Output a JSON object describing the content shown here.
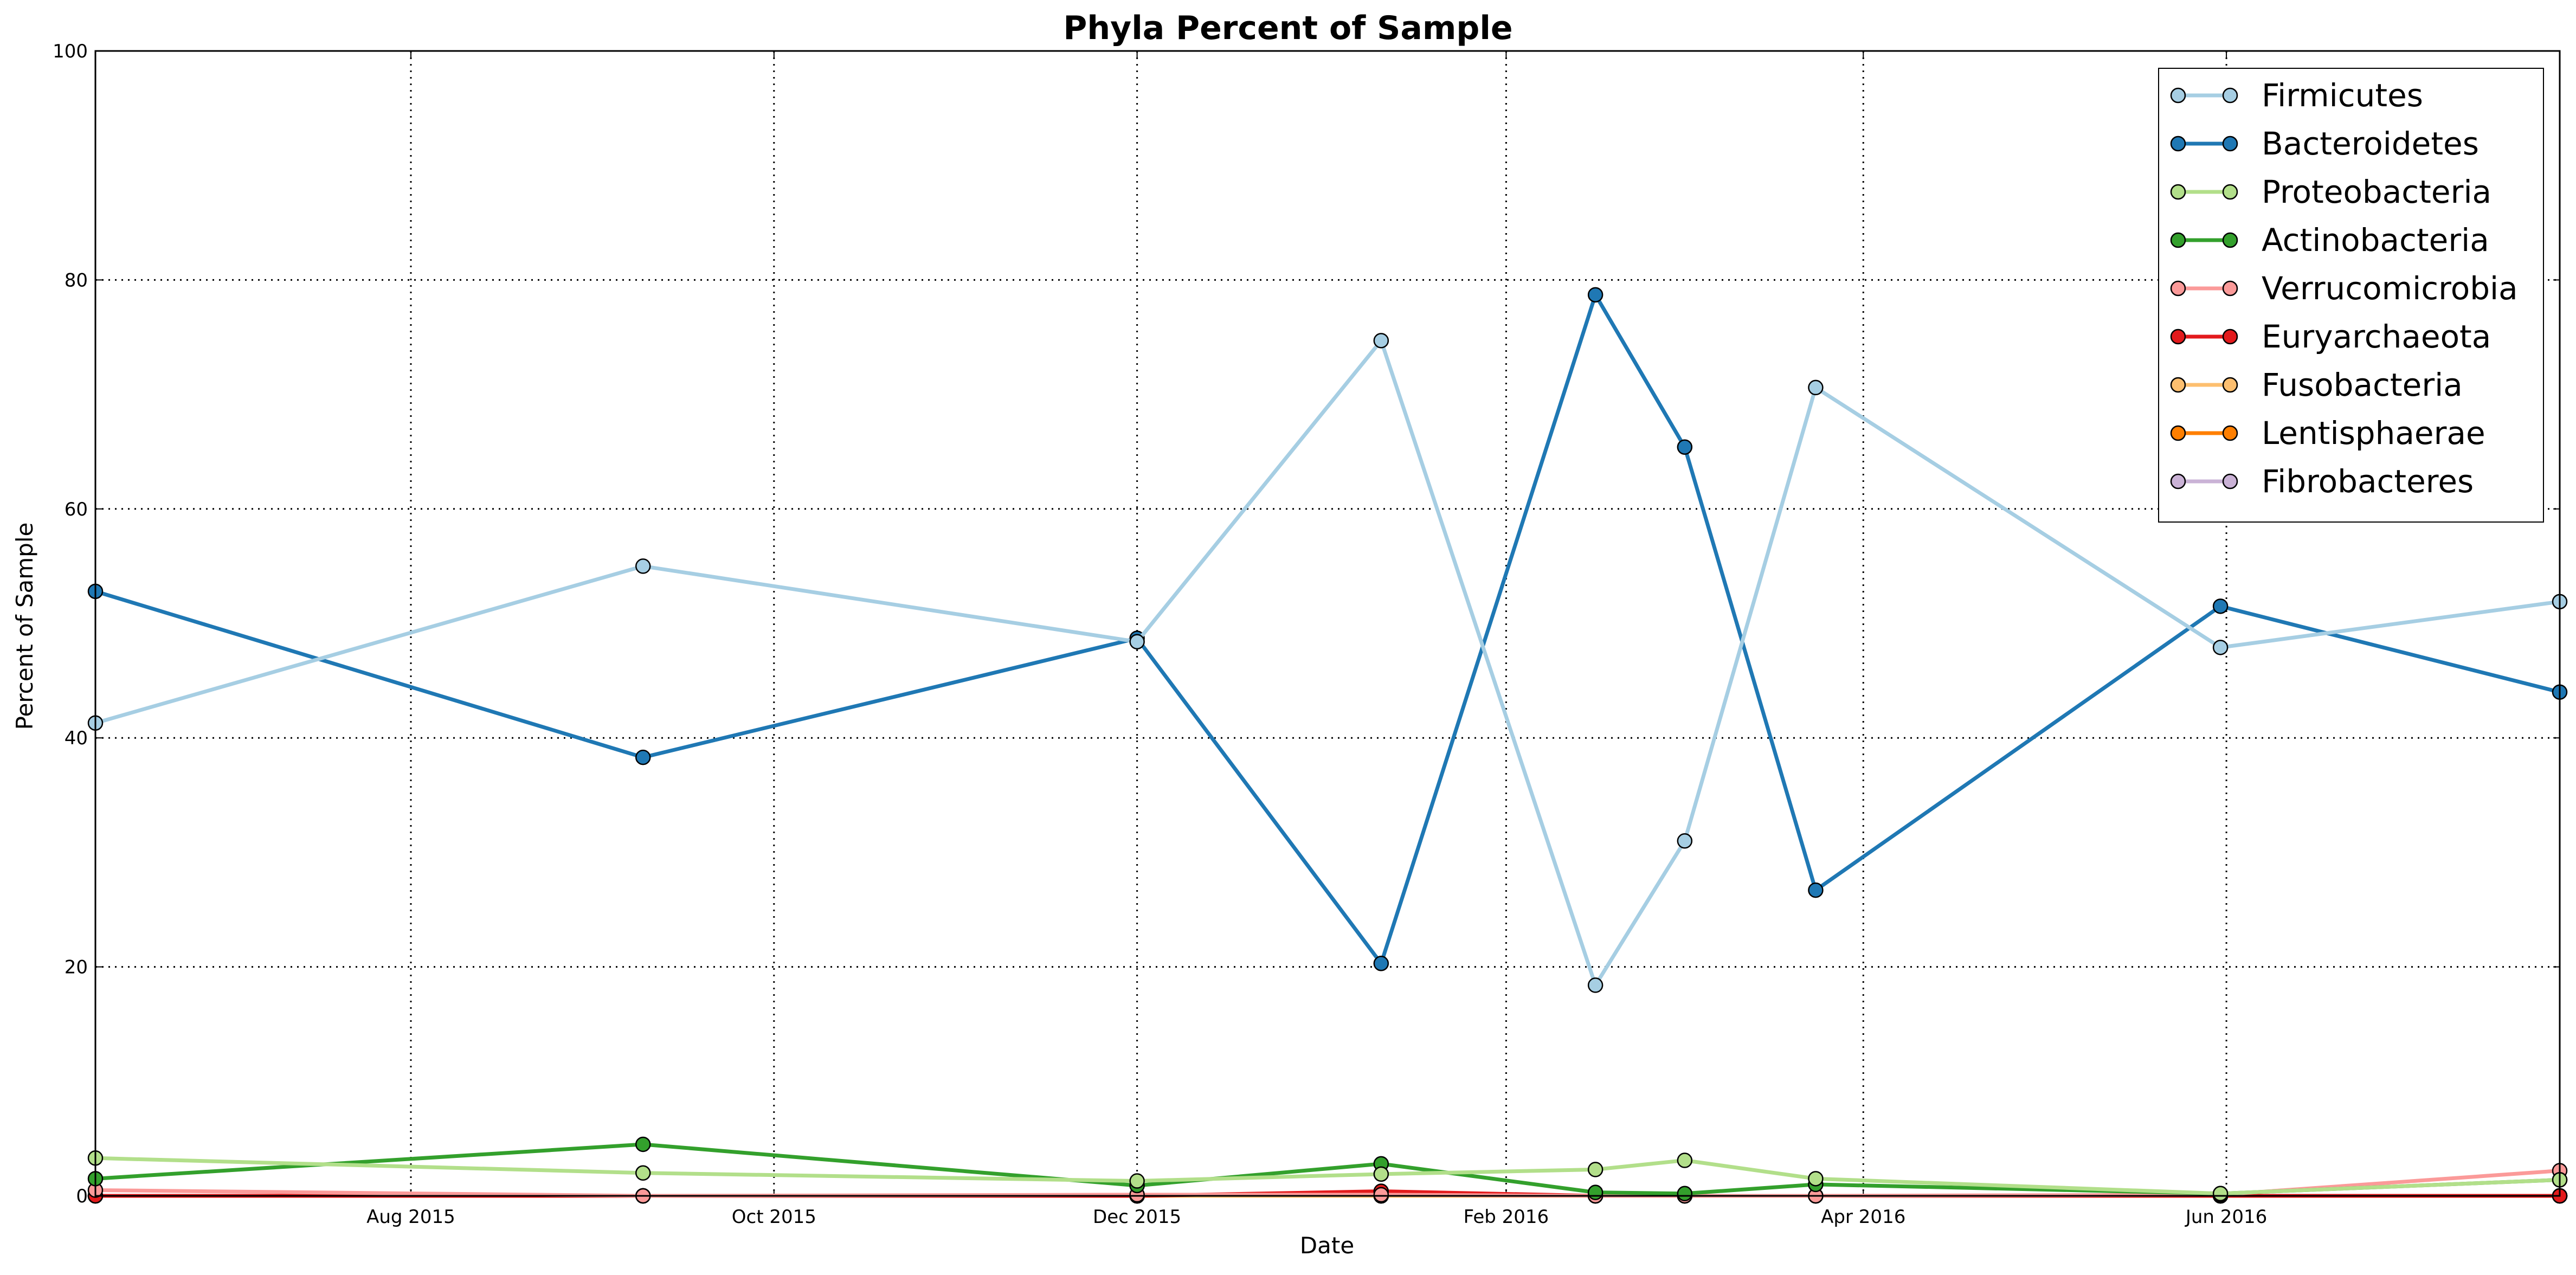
{
  "chart_data": {
    "type": "line",
    "title": "Phyla Percent of Sample",
    "xlabel": "Date",
    "ylabel": "Percent of Sample",
    "x_axis_kind": "date",
    "xlim": [
      "2015-06-09",
      "2016-07-27"
    ],
    "ylim": [
      0,
      100
    ],
    "y_ticks": [
      0,
      20,
      40,
      60,
      80,
      100
    ],
    "x_ticks": [
      {
        "date": "2015-08-01",
        "label": "Aug 2015"
      },
      {
        "date": "2015-10-01",
        "label": "Oct 2015"
      },
      {
        "date": "2015-12-01",
        "label": "Dec 2015"
      },
      {
        "date": "2016-02-01",
        "label": "Feb 2016"
      },
      {
        "date": "2016-04-01",
        "label": "Apr 2016"
      },
      {
        "date": "2016-06-01",
        "label": "Jun 2016"
      }
    ],
    "grid": true,
    "legend_position": "top-right",
    "x": [
      "2015-06-09",
      "2015-09-09",
      "2015-12-01",
      "2016-01-11",
      "2016-02-16",
      "2016-03-02",
      "2016-03-24",
      "2016-05-31",
      "2016-07-27"
    ],
    "series": [
      {
        "name": "Firmicutes",
        "color": "#a6cee3",
        "values": [
          41.3,
          55.0,
          48.4,
          74.7,
          18.4,
          31.0,
          70.6,
          47.9,
          51.9
        ]
      },
      {
        "name": "Bacteroidetes",
        "color": "#1f78b4",
        "values": [
          52.8,
          38.3,
          48.7,
          20.3,
          78.7,
          65.4,
          26.7,
          51.5,
          44.0
        ]
      },
      {
        "name": "Proteobacteria",
        "color": "#b2df8a",
        "values": [
          3.3,
          2.0,
          1.3,
          1.9,
          2.3,
          3.1,
          1.5,
          0.2,
          1.4
        ]
      },
      {
        "name": "Actinobacteria",
        "color": "#33a02c",
        "values": [
          1.5,
          4.5,
          0.9,
          2.8,
          0.3,
          0.2,
          1.0,
          0.2,
          1.4
        ]
      },
      {
        "name": "Verrucomicrobia",
        "color": "#fb9a99",
        "values": [
          0.5,
          0.0,
          0.1,
          0.1,
          0.0,
          0.0,
          0.0,
          0.1,
          2.2
        ]
      },
      {
        "name": "Euryarchaeota",
        "color": "#e31a1c",
        "values": [
          0.0,
          0.0,
          0.0,
          0.4,
          0.0,
          0.0,
          0.0,
          0.0,
          0.0
        ]
      },
      {
        "name": "Fusobacteria",
        "color": "#fdbf6f",
        "values": [
          0.0,
          0.0,
          0.0,
          0.0,
          0.0,
          0.0,
          0.0,
          0.0,
          0.0
        ]
      },
      {
        "name": "Lentisphaerae",
        "color": "#ff7f00",
        "values": [
          0.0,
          0.0,
          0.0,
          0.0,
          0.0,
          0.0,
          0.0,
          0.0,
          0.0
        ]
      },
      {
        "name": "Fibrobacteres",
        "color": "#cab2d6",
        "values": [
          0.0,
          0.0,
          0.0,
          0.0,
          0.0,
          0.0,
          0.0,
          0.0,
          0.0
        ]
      }
    ]
  }
}
